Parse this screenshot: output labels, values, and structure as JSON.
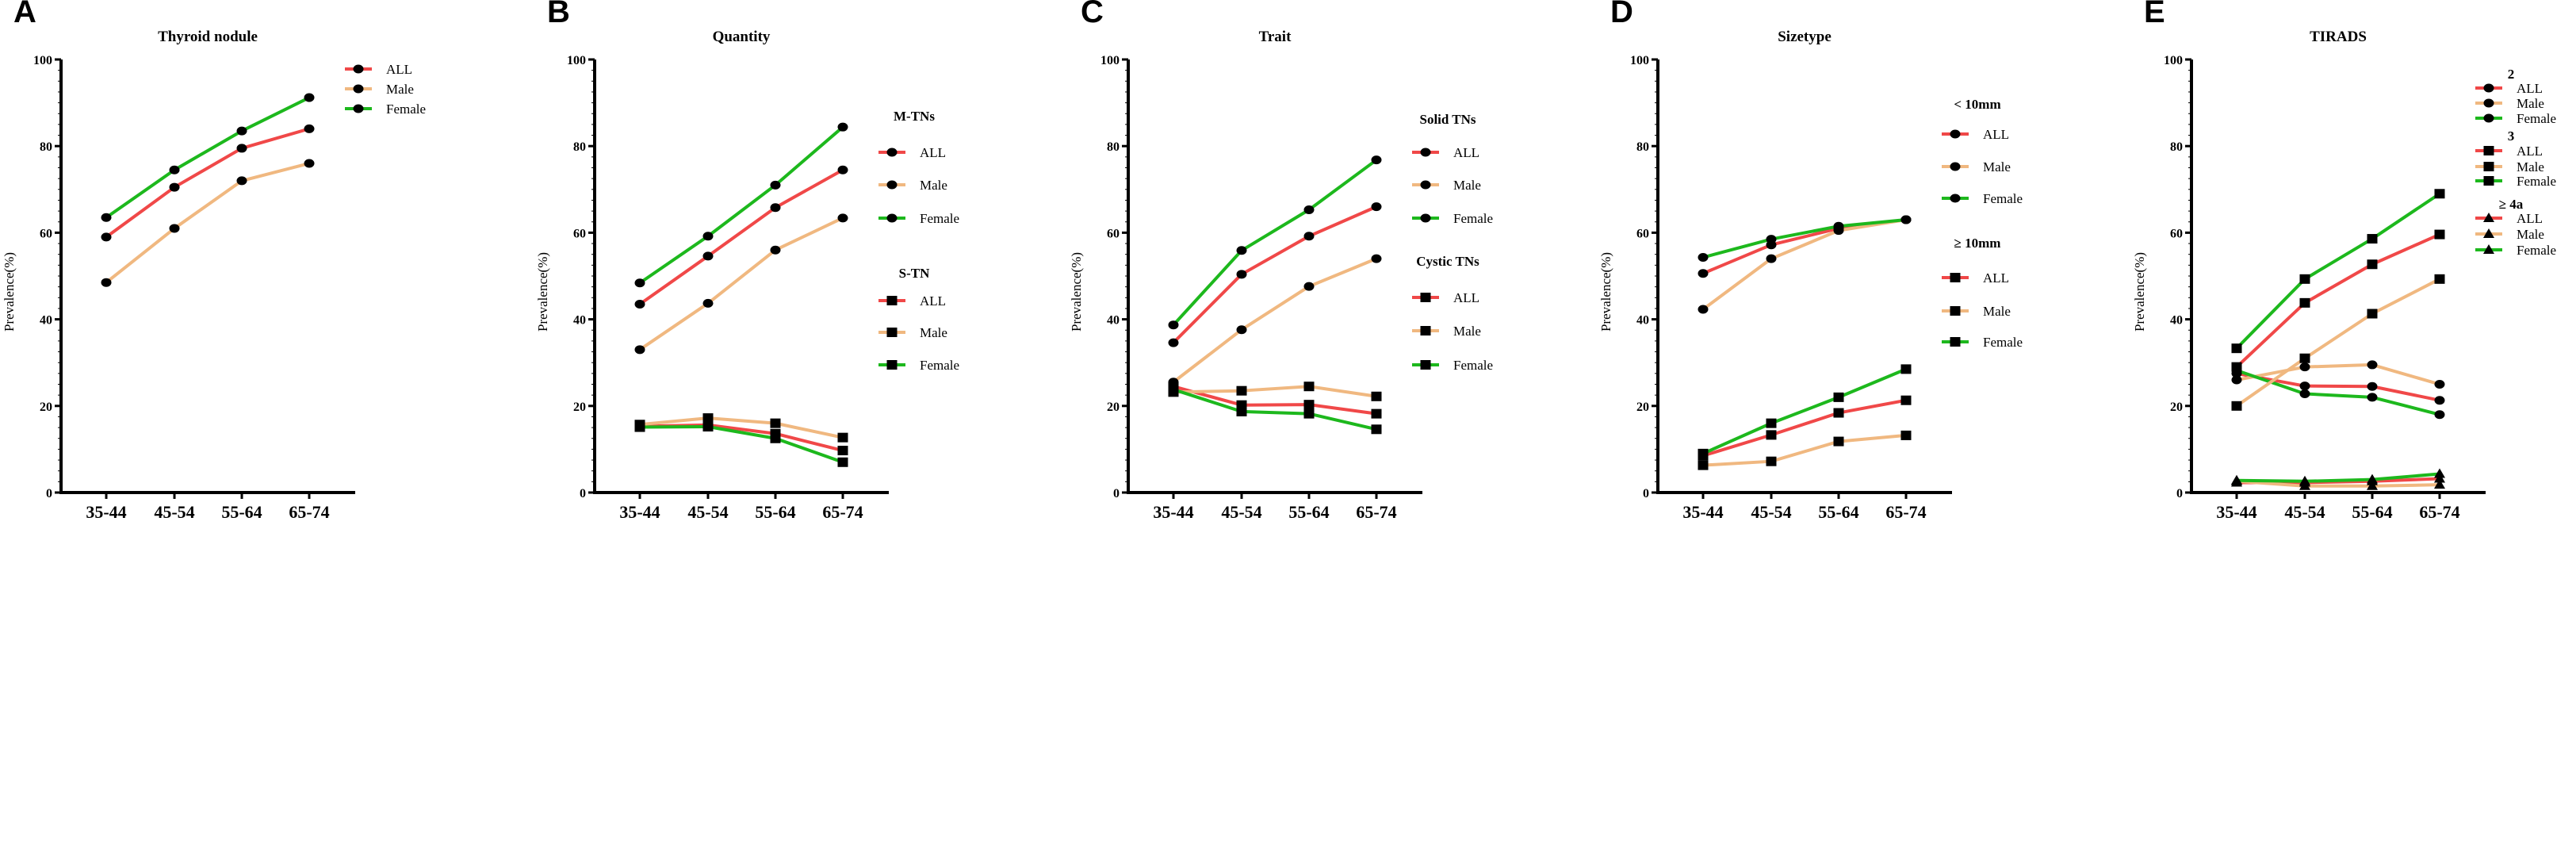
{
  "colors": {
    "ALL": "#F04848",
    "Male": "#F0B880",
    "Female": "#1DB81D",
    "marker": "#000000"
  },
  "chart_data": [
    {
      "type": "line",
      "panel": "A",
      "title": "Thyroid nodule",
      "ylabel": "Prevalence(%)",
      "xlabel": "",
      "ylim": [
        0,
        100
      ],
      "yticks": [
        "0",
        "20",
        "40",
        "60",
        "80",
        "100"
      ],
      "categories": [
        "35-44",
        "45-54",
        "55-64",
        "65-74"
      ],
      "groups": [
        {
          "header": "",
          "marker": "circle",
          "series": [
            {
              "name": "ALL",
              "values": [
                59,
                70.5,
                79.5,
                84
              ]
            },
            {
              "name": "Male",
              "values": [
                48.5,
                61,
                72,
                76
              ]
            },
            {
              "name": "Female",
              "values": [
                63.5,
                74.5,
                83.5,
                91.2
              ]
            }
          ]
        }
      ]
    },
    {
      "type": "line",
      "panel": "B",
      "title": "Quantity",
      "ylabel": "Prevalence(%)",
      "xlabel": "",
      "ylim": [
        0,
        100
      ],
      "yticks": [
        "0",
        "20",
        "40",
        "60",
        "80",
        "100"
      ],
      "categories": [
        "35-44",
        "45-54",
        "55-64",
        "65-74"
      ],
      "groups": [
        {
          "header": "M-TNs",
          "marker": "circle",
          "series": [
            {
              "name": "ALL",
              "values": [
                43.5,
                54.6,
                65.8,
                74.5
              ]
            },
            {
              "name": "Male",
              "values": [
                33,
                43.7,
                56,
                63.4
              ]
            },
            {
              "name": "Female",
              "values": [
                48.4,
                59.2,
                71,
                84.4
              ]
            }
          ]
        },
        {
          "header": "S-TN",
          "marker": "square",
          "series": [
            {
              "name": "ALL",
              "values": [
                15.3,
                15.6,
                13.6,
                9.7
              ]
            },
            {
              "name": "Male",
              "values": [
                15.7,
                17.2,
                16,
                12.7
              ]
            },
            {
              "name": "Female",
              "values": [
                15.1,
                15.2,
                12.5,
                7
              ]
            }
          ]
        }
      ]
    },
    {
      "type": "line",
      "panel": "C",
      "title": "Trait",
      "ylabel": "Prevalence(%)",
      "xlabel": "",
      "ylim": [
        0,
        100
      ],
      "yticks": [
        "0",
        "20",
        "40",
        "60",
        "80",
        "100"
      ],
      "categories": [
        "35-44",
        "45-54",
        "55-64",
        "65-74"
      ],
      "groups": [
        {
          "header": "Solid TNs",
          "marker": "circle",
          "series": [
            {
              "name": "ALL",
              "values": [
                34.6,
                50.4,
                59.2,
                66
              ]
            },
            {
              "name": "Male",
              "values": [
                25.5,
                37.6,
                47.6,
                54
              ]
            },
            {
              "name": "Female",
              "values": [
                38.7,
                55.9,
                65.3,
                76.8
              ]
            }
          ]
        },
        {
          "header": "Cystic TNs",
          "marker": "square",
          "series": [
            {
              "name": "ALL",
              "values": [
                24.5,
                20.2,
                20.3,
                18.2
              ]
            },
            {
              "name": "Male",
              "values": [
                23.2,
                23.5,
                24.5,
                22.2
              ]
            },
            {
              "name": "Female",
              "values": [
                23.8,
                18.7,
                18.2,
                14.6
              ]
            }
          ]
        }
      ]
    },
    {
      "type": "line",
      "panel": "D",
      "title": "Sizetype",
      "ylabel": "Prevalence(%)",
      "xlabel": "",
      "ylim": [
        0,
        100
      ],
      "yticks": [
        "0",
        "20",
        "40",
        "60",
        "80",
        "100"
      ],
      "categories": [
        "35-44",
        "45-54",
        "55-64",
        "65-74"
      ],
      "groups": [
        {
          "header": "< 10mm",
          "marker": "circle",
          "series": [
            {
              "name": "ALL",
              "values": [
                50.6,
                57.2,
                61,
                63
              ]
            },
            {
              "name": "Male",
              "values": [
                42.3,
                54,
                60.5,
                63
              ]
            },
            {
              "name": "Female",
              "values": [
                54.3,
                58.5,
                61.5,
                63
              ]
            }
          ]
        },
        {
          "header": "≥ 10mm",
          "marker": "square",
          "series": [
            {
              "name": "ALL",
              "values": [
                8.5,
                13.3,
                18.4,
                21.3
              ]
            },
            {
              "name": "Male",
              "values": [
                6.3,
                7.2,
                11.8,
                13.2
              ]
            },
            {
              "name": "Female",
              "values": [
                9,
                16,
                22,
                28.5
              ]
            }
          ]
        }
      ]
    },
    {
      "type": "line",
      "panel": "E",
      "title": "TIRADS",
      "ylabel": "Prevalence(%)",
      "xlabel": "",
      "ylim": [
        0,
        100
      ],
      "yticks": [
        "0",
        "20",
        "40",
        "60",
        "80",
        "100"
      ],
      "categories": [
        "35-44",
        "45-54",
        "55-64",
        "65-74"
      ],
      "groups": [
        {
          "header": "2",
          "marker": "circle",
          "series": [
            {
              "name": "ALL",
              "values": [
                27.5,
                24.6,
                24.5,
                21.3
              ]
            },
            {
              "name": "Male",
              "values": [
                26,
                29,
                29.5,
                25
              ]
            },
            {
              "name": "Female",
              "values": [
                28.2,
                22.8,
                22,
                18
              ]
            }
          ]
        },
        {
          "header": "3",
          "marker": "square",
          "series": [
            {
              "name": "ALL",
              "values": [
                29,
                43.8,
                52.7,
                59.6
              ]
            },
            {
              "name": "Male",
              "values": [
                20,
                31,
                41.3,
                49.3
              ]
            },
            {
              "name": "Female",
              "values": [
                33.3,
                49.3,
                58.6,
                69
              ]
            }
          ]
        },
        {
          "header": "≥ 4a",
          "marker": "triangle",
          "series": [
            {
              "name": "ALL",
              "values": [
                2.3,
                2.3,
                2.6,
                3.2
              ]
            },
            {
              "name": "Male",
              "values": [
                2.6,
                1.5,
                1.5,
                1.8
              ]
            },
            {
              "name": "Female",
              "values": [
                2.8,
                2.6,
                3.0,
                4.3
              ]
            }
          ]
        }
      ]
    }
  ]
}
